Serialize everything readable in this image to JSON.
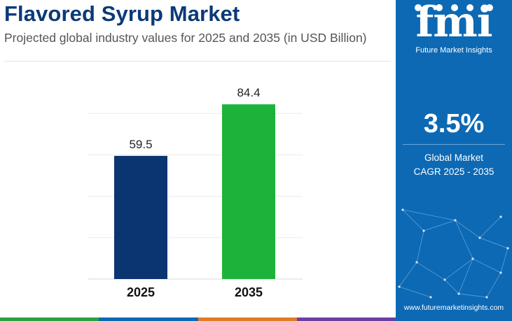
{
  "header": {
    "title": "Flavored Syrup Market",
    "subtitle": "Projected global industry values for 2025 and 2035 (in USD Billion)"
  },
  "chart_data": {
    "type": "bar",
    "categories": [
      "2025",
      "2035"
    ],
    "values": [
      59.5,
      84.4
    ],
    "data_labels": [
      "59.5",
      "84.4"
    ],
    "colors": [
      "#0b3570",
      "#1db33b"
    ],
    "title": "",
    "xlabel": "",
    "ylabel": "",
    "ylim": [
      0,
      100
    ],
    "grid": true,
    "legend": "none"
  },
  "sidebar": {
    "logo_text": "fmi",
    "logo_caption": "Future Market Insights",
    "cagr_value": "3.5%",
    "cagr_label_line1": "Global Market",
    "cagr_label_line2": "CAGR 2025 - 2035",
    "website": "www.futuremarketinsights.com",
    "panel_color": "#0d69b4"
  },
  "strip_colors": [
    "#2c9f3e",
    "#0d69b4",
    "#e07b27",
    "#6b3fa0"
  ]
}
